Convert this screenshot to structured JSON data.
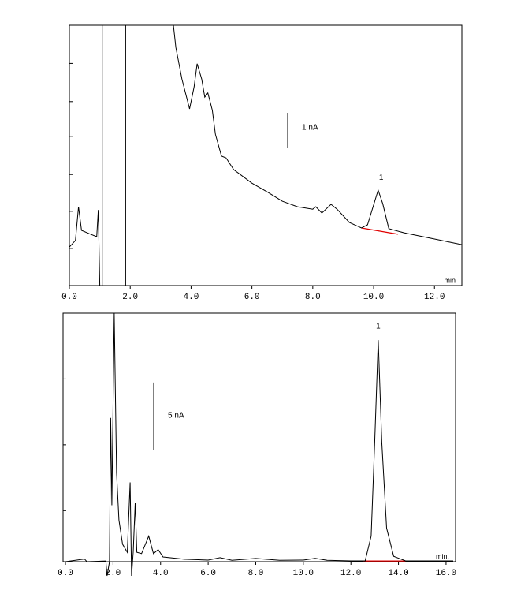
{
  "chart_data": [
    {
      "type": "line",
      "xlabel": "min",
      "xlim": [
        0,
        12.9
      ],
      "ylim": [
        0,
        7.5
      ],
      "xticks": [
        {
          "value": 0,
          "label": "0.0"
        },
        {
          "value": 2,
          "label": "2.0"
        },
        {
          "value": 4,
          "label": "4.0"
        },
        {
          "value": 6,
          "label": "6.0"
        },
        {
          "value": 8,
          "label": "8.0"
        },
        {
          "value": 10,
          "label": "10.0"
        },
        {
          "value": 12,
          "label": "12.0"
        }
      ],
      "yticks": [
        0,
        1.07,
        2.14,
        3.2,
        4.3,
        5.3,
        6.4,
        7.5
      ],
      "series": [
        {
          "color": "#000000",
          "x": [
            0,
            0.2,
            0.3,
            0.4,
            0.7,
            0.9,
            0.95,
            1.0,
            null,
            1.08,
            1.08,
            null,
            1.85,
            1.85,
            null,
            3.42,
            3.5,
            3.7,
            3.95,
            4.1,
            4.2,
            4.35,
            4.45,
            4.55,
            4.7,
            4.8,
            5.0,
            5.15,
            5.4,
            6.0,
            6.5,
            7.0,
            7.5,
            8.0,
            8.1,
            8.3,
            8.6,
            8.8,
            9.2,
            9.6,
            9.8,
            10.0,
            10.15,
            10.3,
            10.5,
            11.0,
            12.0,
            12.9
          ],
          "values": [
            1.11,
            1.3,
            2.27,
            1.59,
            1.48,
            1.41,
            2.18,
            0,
            null,
            0,
            7.5,
            null,
            7.5,
            0,
            null,
            7.5,
            6.86,
            5.95,
            5.09,
            5.73,
            6.39,
            5.95,
            5.43,
            5.55,
            5.05,
            4.36,
            3.73,
            3.68,
            3.34,
            2.95,
            2.7,
            2.43,
            2.27,
            2.2,
            2.27,
            2.09,
            2.34,
            2.2,
            1.82,
            1.66,
            1.75,
            2.32,
            2.75,
            2.36,
            1.64,
            1.52,
            1.34,
            1.18
          ]
        }
      ],
      "baseline": {
        "color": "#e00000",
        "x": [
          9.6,
          10.8
        ],
        "values": [
          1.66,
          1.48
        ]
      },
      "annotations": [
        {
          "text": "1",
          "x": 10.25,
          "y": 3.1
        }
      ],
      "scale_bar": {
        "label": "1 nA",
        "value": 1
      }
    },
    {
      "type": "line",
      "xlabel": "min.",
      "xlim": [
        -0.1,
        16.4
      ],
      "ylim": [
        0,
        18.5
      ],
      "xticks": [
        {
          "value": 0,
          "label": "0.0"
        },
        {
          "value": 2,
          "label": "2.0"
        },
        {
          "value": 4,
          "label": "4.0"
        },
        {
          "value": 6,
          "label": "6.0"
        },
        {
          "value": 8,
          "label": "8.0"
        },
        {
          "value": 10,
          "label": "10.0"
        },
        {
          "value": 12,
          "label": "12.0"
        },
        {
          "value": 14,
          "label": "14.0"
        },
        {
          "value": 16,
          "label": "16.0"
        }
      ],
      "yticks": [
        3.8,
        8.7,
        13.6,
        18.5
      ],
      "series": [
        {
          "color": "#000000",
          "x": [
            0,
            0.8,
            0.9,
            1.7,
            1.75,
            1.85,
            1.9,
            1.95,
            2.05,
            2.15,
            2.25,
            2.4,
            2.6,
            2.72,
            2.78,
            2.85,
            2.93,
            3.0,
            3.2,
            3.5,
            3.7,
            3.9,
            4.1,
            5.0,
            6.0,
            6.5,
            7.0,
            8.0,
            9.0,
            10.0,
            10.5,
            11.0,
            12.0,
            12.6,
            12.85,
            13.0,
            13.15,
            13.3,
            13.5,
            13.8,
            14.3,
            15.0,
            16.3
          ],
          "values": [
            0,
            0.2,
            0,
            0.05,
            -1.06,
            0,
            10.7,
            4.2,
            18.5,
            6.6,
            3.1,
            1.3,
            0.7,
            5.9,
            -1.06,
            0.7,
            4.35,
            0.7,
            0.6,
            1.9,
            0.6,
            0.9,
            0.35,
            0.18,
            0.12,
            0.3,
            0.1,
            0.24,
            0.1,
            0.12,
            0.25,
            0.1,
            0.06,
            0.06,
            1.9,
            8.9,
            16.5,
            8.9,
            2.5,
            0.4,
            0.06,
            0.06,
            0.06
          ]
        }
      ],
      "baseline": {
        "color": "#e00000",
        "x": [
          12.5,
          14.3
        ],
        "values": [
          0.05,
          0.05
        ]
      },
      "annotations": [
        {
          "text": "1",
          "x": 13.15,
          "y": 17.5
        }
      ],
      "scale_bar": {
        "label": "5 nA",
        "value": 5
      }
    }
  ]
}
